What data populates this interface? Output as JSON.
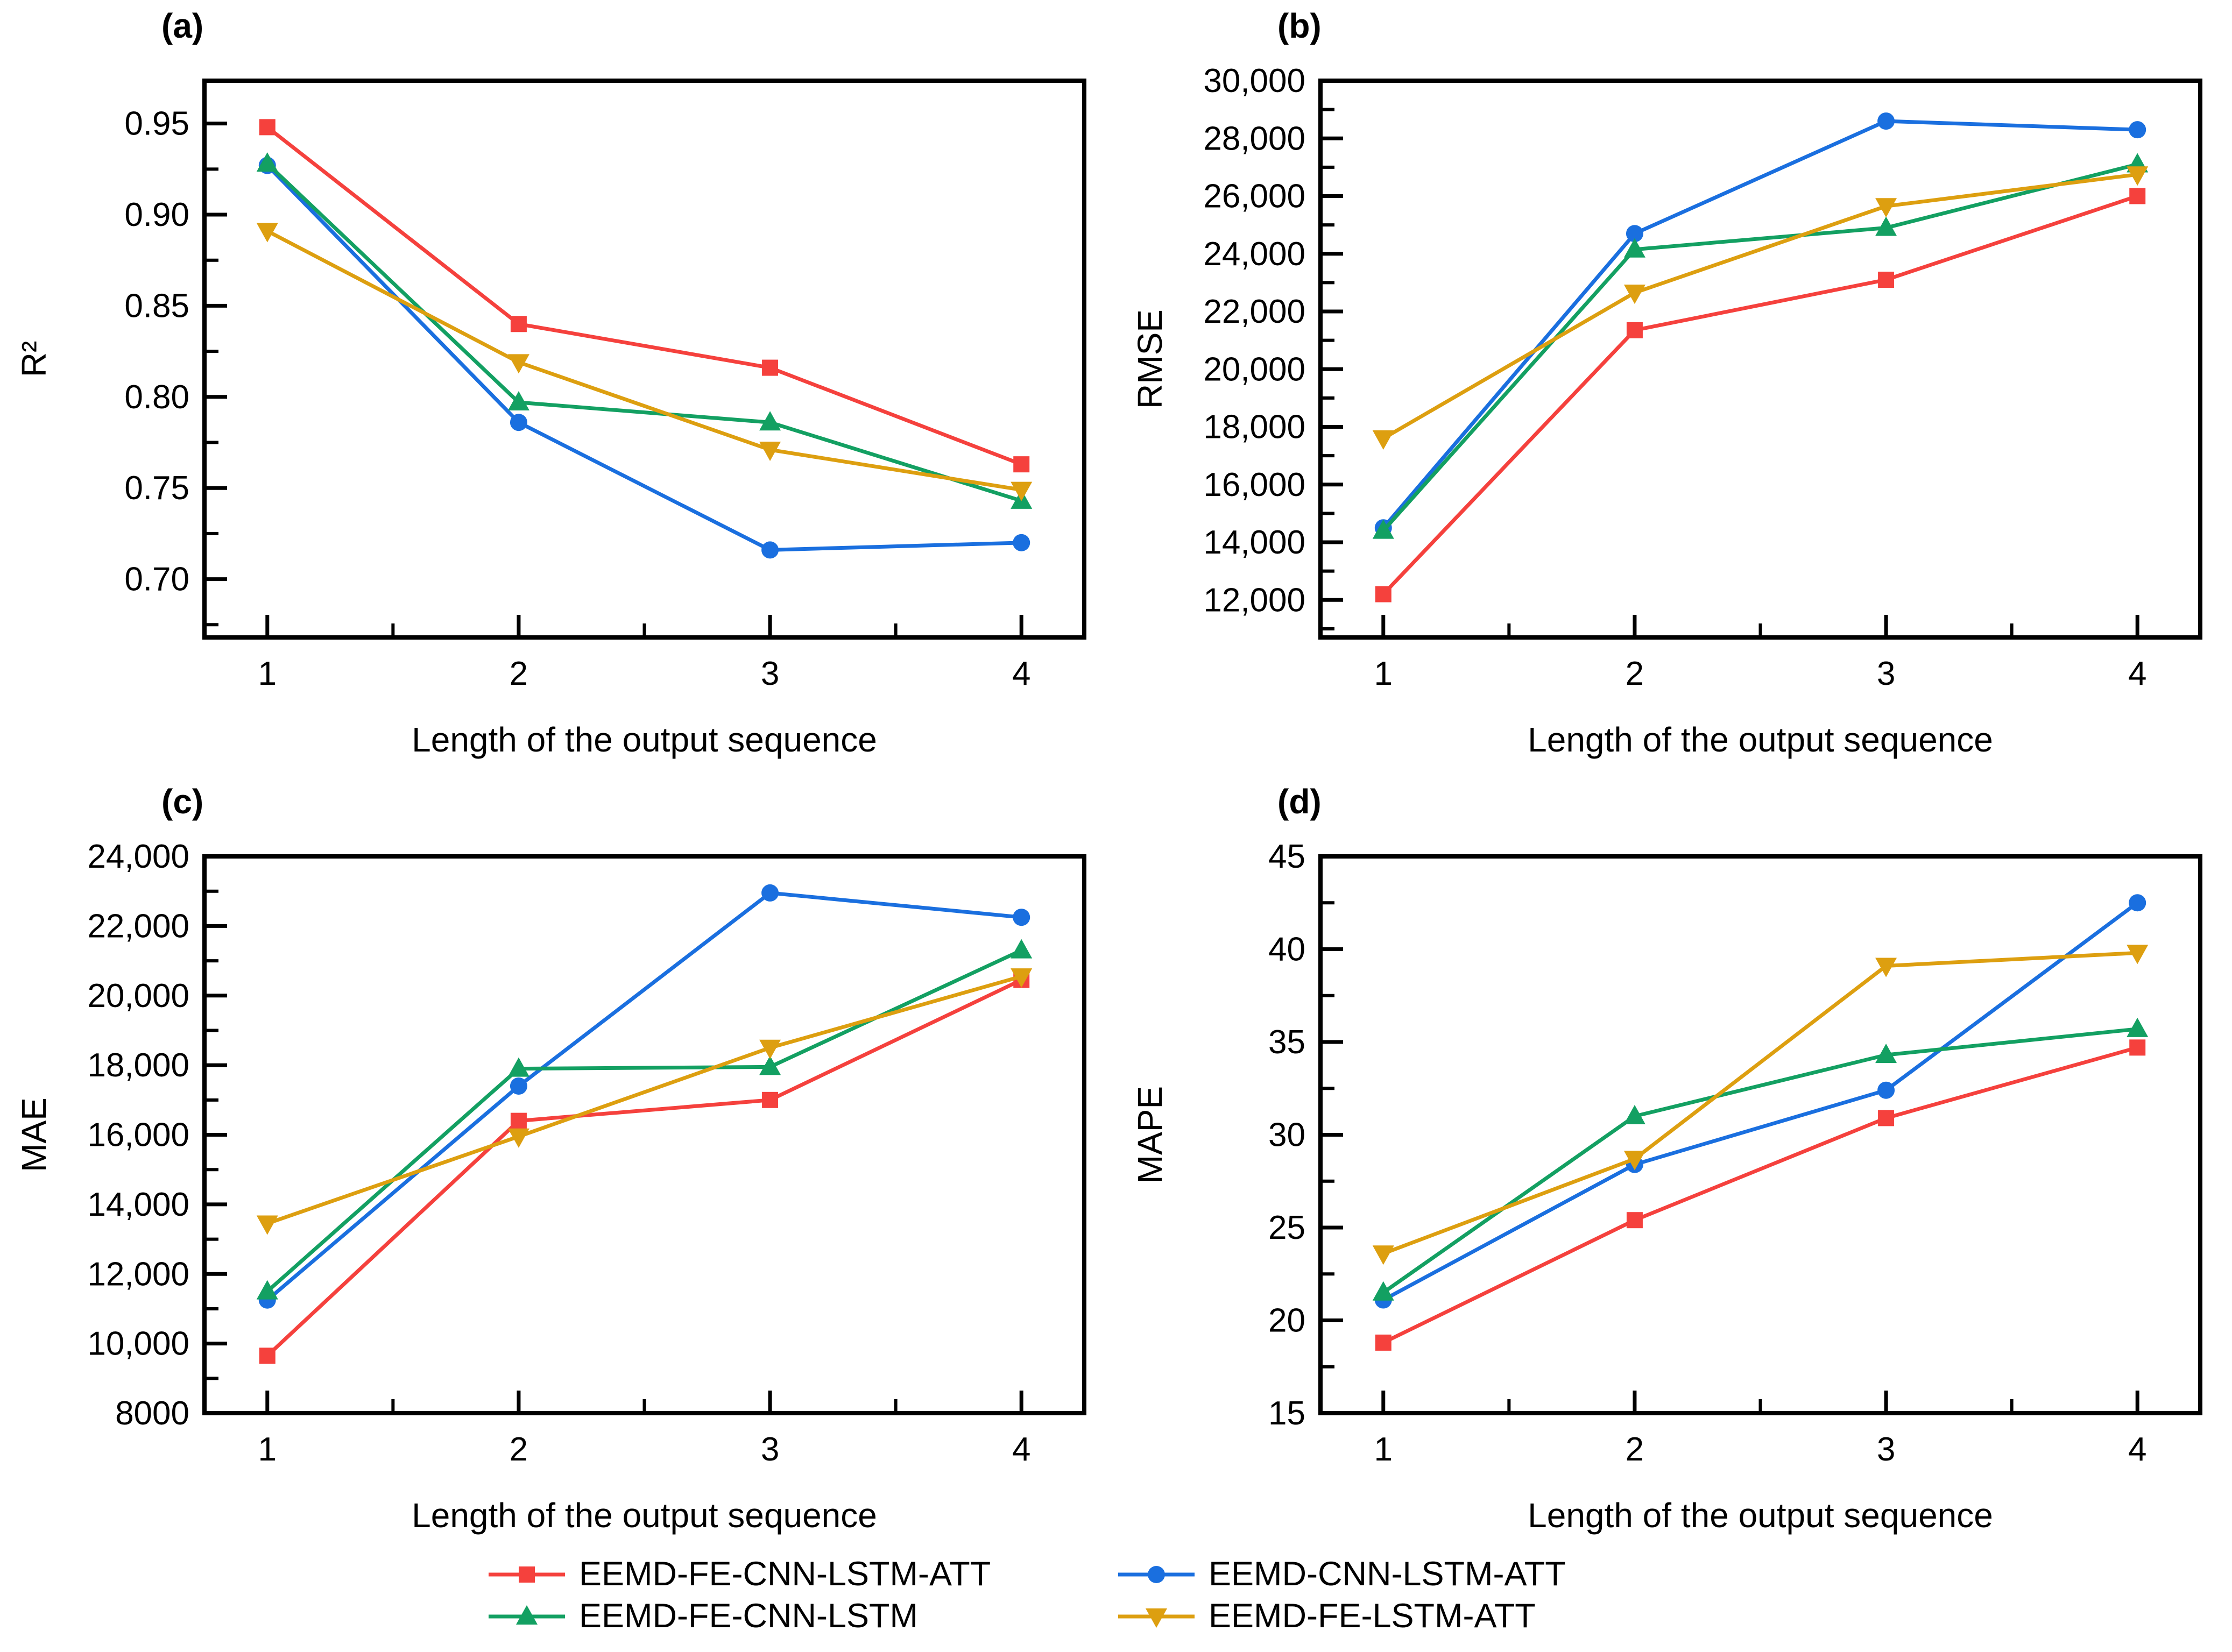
{
  "legend": {
    "items": [
      {
        "label": "EEMD-FE-CNN-LSTM-ATT",
        "marker": "square",
        "color": "#f5413d"
      },
      {
        "label": "EEMD-CNN-LSTM-ATT",
        "marker": "circle",
        "color": "#1a6fdf"
      },
      {
        "label": "EEMD-FE-CNN-LSTM",
        "marker": "triangle-up",
        "color": "#13a062"
      },
      {
        "label": "EEMD-FE-LSTM-ATT",
        "marker": "triangle-down",
        "color": "#dd9f10"
      }
    ]
  },
  "axis_color": "#000000",
  "background_color": "#ffffff",
  "chart_data": [
    {
      "id": "a",
      "type": "line",
      "panel_label": "(a)",
      "xlabel": "Length of the output sequence",
      "ylabel": "R²",
      "x": [
        1,
        2,
        3,
        4
      ],
      "x_tick_labels": [
        "1",
        "2",
        "3",
        "4"
      ],
      "xlim": [
        0.75,
        4.25
      ],
      "ylim": [
        0.668,
        0.9735
      ],
      "ytick_values": [
        0.7,
        0.75,
        0.8,
        0.85,
        0.9,
        0.95
      ],
      "ytick_labels": [
        "0.70",
        "0.75",
        "0.80",
        "0.85",
        "0.90",
        "0.95"
      ],
      "y_minor_ticks": [
        0.675,
        0.725,
        0.775,
        0.825,
        0.875,
        0.925
      ],
      "x_minor_ticks": [
        1.5,
        2.5,
        3.5
      ],
      "legend_position": "none",
      "grid": false,
      "series": [
        {
          "name": "EEMD-FE-CNN-LSTM-ATT",
          "values": [
            0.948,
            0.84,
            0.816,
            0.763
          ]
        },
        {
          "name": "EEMD-CNN-LSTM-ATT",
          "values": [
            0.927,
            0.786,
            0.716,
            0.72
          ]
        },
        {
          "name": "EEMD-FE-CNN-LSTM",
          "values": [
            0.928,
            0.797,
            0.786,
            0.743
          ]
        },
        {
          "name": "EEMD-FE-LSTM-ATT",
          "values": [
            0.891,
            0.819,
            0.771,
            0.749
          ]
        }
      ]
    },
    {
      "id": "b",
      "type": "line",
      "panel_label": "(b)",
      "xlabel": "Length of the output sequence",
      "ylabel": "RMSE",
      "x": [
        1,
        2,
        3,
        4
      ],
      "x_tick_labels": [
        "1",
        "2",
        "3",
        "4"
      ],
      "xlim": [
        0.75,
        4.25
      ],
      "ylim": [
        10700,
        30000
      ],
      "ytick_values": [
        12000,
        14000,
        16000,
        18000,
        20000,
        22000,
        24000,
        26000,
        28000,
        30000
      ],
      "ytick_labels": [
        "12,000",
        "14,000",
        "16,000",
        "18,000",
        "20,000",
        "22,000",
        "24,000",
        "26,000",
        "28,000",
        "30,000"
      ],
      "y_minor_ticks": [
        11000,
        13000,
        15000,
        17000,
        19000,
        21000,
        23000,
        25000,
        27000,
        29000
      ],
      "x_minor_ticks": [
        1.5,
        2.5,
        3.5
      ],
      "legend_position": "none",
      "grid": false,
      "series": [
        {
          "name": "EEMD-FE-CNN-LSTM-ATT",
          "values": [
            12200,
            21350,
            23100,
            26000
          ]
        },
        {
          "name": "EEMD-CNN-LSTM-ATT",
          "values": [
            14500,
            24700,
            28600,
            28300
          ]
        },
        {
          "name": "EEMD-FE-CNN-LSTM",
          "values": [
            14400,
            24150,
            24900,
            27100
          ]
        },
        {
          "name": "EEMD-FE-LSTM-ATT",
          "values": [
            17600,
            22650,
            25650,
            26750
          ]
        }
      ]
    },
    {
      "id": "c",
      "type": "line",
      "panel_label": "(c)",
      "xlabel": "Length of the output sequence",
      "ylabel": "MAE",
      "x": [
        1,
        2,
        3,
        4
      ],
      "x_tick_labels": [
        "1",
        "2",
        "3",
        "4"
      ],
      "xlim": [
        0.75,
        4.25
      ],
      "ylim": [
        8000,
        24000
      ],
      "ytick_values": [
        8000,
        10000,
        12000,
        14000,
        16000,
        18000,
        20000,
        22000,
        24000
      ],
      "ytick_labels": [
        "8000",
        "10,000",
        "12,000",
        "14,000",
        "16,000",
        "18,000",
        "20,000",
        "22,000",
        "24,000"
      ],
      "y_minor_ticks": [
        9000,
        11000,
        13000,
        15000,
        17000,
        19000,
        21000,
        23000
      ],
      "x_minor_ticks": [
        1.5,
        2.5,
        3.5
      ],
      "legend_position": "none",
      "grid": false,
      "series": [
        {
          "name": "EEMD-FE-CNN-LSTM-ATT",
          "values": [
            9650,
            16400,
            17000,
            20450
          ]
        },
        {
          "name": "EEMD-CNN-LSTM-ATT",
          "values": [
            11250,
            17400,
            22950,
            22250
          ]
        },
        {
          "name": "EEMD-FE-CNN-LSTM",
          "values": [
            11500,
            17900,
            17950,
            21300
          ]
        },
        {
          "name": "EEMD-FE-LSTM-ATT",
          "values": [
            13450,
            15950,
            18500,
            20550
          ]
        }
      ]
    },
    {
      "id": "d",
      "type": "line",
      "panel_label": "(d)",
      "xlabel": "Length of the output sequence",
      "ylabel": "MAPE",
      "x": [
        1,
        2,
        3,
        4
      ],
      "x_tick_labels": [
        "1",
        "2",
        "3",
        "4"
      ],
      "xlim": [
        0.75,
        4.25
      ],
      "ylim": [
        15,
        45
      ],
      "ytick_values": [
        15,
        20,
        25,
        30,
        35,
        40,
        45
      ],
      "ytick_labels": [
        "15",
        "20",
        "25",
        "30",
        "35",
        "40",
        "45"
      ],
      "y_minor_ticks": [
        17.5,
        22.5,
        27.5,
        32.5,
        37.5,
        42.5
      ],
      "x_minor_ticks": [
        1.5,
        2.5,
        3.5
      ],
      "legend_position": "none",
      "grid": false,
      "series": [
        {
          "name": "EEMD-FE-CNN-LSTM-ATT",
          "values": [
            18.8,
            25.4,
            30.9,
            34.7
          ]
        },
        {
          "name": "EEMD-CNN-LSTM-ATT",
          "values": [
            21.1,
            28.4,
            32.4,
            42.5
          ]
        },
        {
          "name": "EEMD-FE-CNN-LSTM",
          "values": [
            21.5,
            31.0,
            34.3,
            35.7
          ]
        },
        {
          "name": "EEMD-FE-LSTM-ATT",
          "values": [
            23.6,
            28.7,
            39.1,
            39.8
          ]
        }
      ]
    }
  ]
}
